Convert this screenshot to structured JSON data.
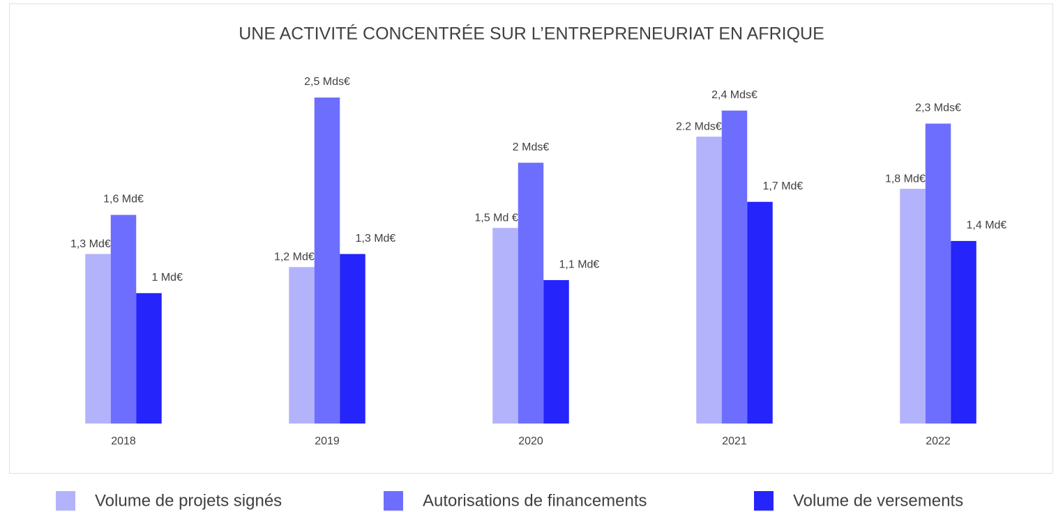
{
  "chart_data": {
    "type": "bar",
    "title": "UNE ACTIVITÉ CONCENTRÉE SUR L’ENTREPRENEURIAT EN AFRIQUE",
    "categories": [
      "2018",
      "2019",
      "2020",
      "2021",
      "2022"
    ],
    "series": [
      {
        "name": "Volume de projets signés",
        "color": "#b3b3fc",
        "values": [
          1.3,
          1.2,
          1.5,
          2.2,
          1.8
        ],
        "value_labels": [
          "1,3 Md€",
          "1,2 Md€",
          "1,5 Md €",
          "2.2 Mds€",
          "1,8 Md€"
        ]
      },
      {
        "name": "Autorisations de financements",
        "color": "#6e6efe",
        "values": [
          1.6,
          2.5,
          2,
          2.4,
          2.3
        ],
        "value_labels": [
          "1,6 Md€",
          "2,5 Mds€",
          "2 Mds€",
          "2,4 Mds€",
          "2,3 Mds€"
        ]
      },
      {
        "name": "Volume de versements",
        "color": "#2424fb",
        "values": [
          1,
          1.3,
          1.1,
          1.7,
          1.4
        ],
        "value_labels": [
          "1 Md€",
          "1,3 Md€",
          "1,1 Md€",
          "1,7 Md€",
          "1,4 Md€"
        ]
      }
    ]
  }
}
